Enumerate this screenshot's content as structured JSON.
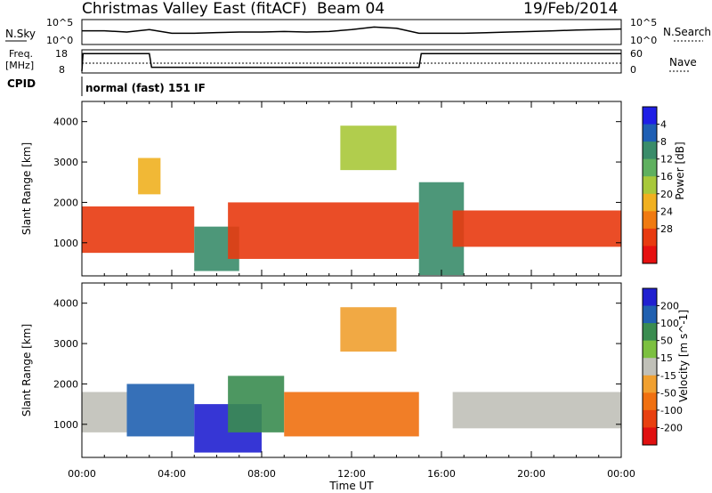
{
  "header": {
    "title": "Christmas Valley East (fitACF)",
    "beam": "Beam 04",
    "date": "19/Feb/2014"
  },
  "noise_panel": {
    "left_label": "N.Sky",
    "right_label": "N.Search",
    "left_ticks": [
      "10^5",
      "10^0"
    ],
    "right_ticks": [
      "10^5",
      "10^0"
    ]
  },
  "freq_panel": {
    "left_label_line1": "Freq.",
    "left_label_line2": "[MHz]",
    "right_label": "Nave",
    "left_ticks": [
      "18",
      "8"
    ],
    "right_ticks": [
      "60",
      "0"
    ]
  },
  "cpid": {
    "label": "CPID",
    "value": "normal (fast) 151 IF"
  },
  "chart_data": [
    {
      "type": "line",
      "name": "noise",
      "xlabel": "",
      "ylabel": "N.Sky",
      "xlim_hours": [
        0,
        24
      ],
      "x": [
        0,
        1,
        2,
        3,
        4,
        5,
        6,
        7,
        8,
        9,
        10,
        11,
        12,
        13,
        14,
        15,
        16,
        17,
        18,
        19,
        20,
        21,
        22,
        23,
        24
      ],
      "y_fraction": [
        0.55,
        0.55,
        0.5,
        0.6,
        0.45,
        0.45,
        0.48,
        0.5,
        0.5,
        0.52,
        0.5,
        0.52,
        0.6,
        0.7,
        0.65,
        0.45,
        0.45,
        0.45,
        0.47,
        0.5,
        0.52,
        0.55,
        0.58,
        0.6,
        0.62
      ]
    },
    {
      "type": "line",
      "name": "frequency",
      "ylabel": "Freq. [MHz]",
      "ylim": [
        8,
        18
      ],
      "x": [
        0,
        0.05,
        3.0,
        3.1,
        15.0,
        15.1,
        24
      ],
      "y": [
        8,
        17,
        17,
        10,
        10,
        17,
        17
      ]
    },
    {
      "type": "heatmap",
      "name": "power",
      "ylabel": "Slant Range [km]",
      "xlabel": "",
      "xlim": [
        "00:00",
        "00:00"
      ],
      "ylim": [
        180,
        4500
      ],
      "y_ticks": [
        1000,
        2000,
        3000,
        4000
      ],
      "colorbar_label": "Power [dB]",
      "colorbar_ticks": [
        4,
        8,
        12,
        16,
        20,
        24,
        28
      ],
      "colorbar_colors": [
        "#1f1fe6",
        "#1f5fb4",
        "#3a8c6a",
        "#5fb05f",
        "#a8c83a",
        "#f0b020",
        "#f07a10",
        "#e83a10",
        "#e61010"
      ],
      "echo_regions": [
        {
          "t_start": 0.0,
          "t_end": 5.0,
          "r_min": 750,
          "r_max": 1900,
          "dB": 26
        },
        {
          "t_start": 2.5,
          "t_end": 3.5,
          "r_min": 2200,
          "r_max": 3100,
          "dB": 18
        },
        {
          "t_start": 5.0,
          "t_end": 7.0,
          "r_min": 300,
          "r_max": 1400,
          "dB": 8
        },
        {
          "t_start": 6.5,
          "t_end": 15.0,
          "r_min": 600,
          "r_max": 2000,
          "dB": 28
        },
        {
          "t_start": 11.5,
          "t_end": 14.0,
          "r_min": 2800,
          "r_max": 3900,
          "dB": 14
        },
        {
          "t_start": 15.0,
          "t_end": 17.0,
          "r_min": 200,
          "r_max": 2500,
          "dB": 8
        },
        {
          "t_start": 16.5,
          "t_end": 24.0,
          "r_min": 900,
          "r_max": 1800,
          "dB": 26
        }
      ]
    },
    {
      "type": "heatmap",
      "name": "velocity",
      "ylabel": "Slant Range [km]",
      "xlabel": "Time UT",
      "x_tick_labels": [
        "00:00",
        "04:00",
        "08:00",
        "12:00",
        "16:00",
        "20:00",
        "00:00"
      ],
      "ylim": [
        180,
        4500
      ],
      "y_ticks": [
        1000,
        2000,
        3000,
        4000
      ],
      "colorbar_label": "Velocity [m s^-1]",
      "colorbar_ticks": [
        200,
        100,
        50,
        15,
        -15,
        -50,
        -100,
        -200
      ],
      "colorbar_colors": [
        "#2020d0",
        "#2060b0",
        "#3a8c50",
        "#7cc040",
        "#c0c0b8",
        "#f0a030",
        "#f07010",
        "#e84010",
        "#e01010"
      ],
      "echo_regions": [
        {
          "t_start": 0.0,
          "t_end": 2.0,
          "r_min": 800,
          "r_max": 1800,
          "v": 0
        },
        {
          "t_start": 2.0,
          "t_end": 5.0,
          "r_min": 700,
          "r_max": 2000,
          "v": 180
        },
        {
          "t_start": 5.0,
          "t_end": 8.0,
          "r_min": 300,
          "r_max": 1500,
          "v": 200
        },
        {
          "t_start": 6.5,
          "t_end": 9.0,
          "r_min": 800,
          "r_max": 2200,
          "v": 60
        },
        {
          "t_start": 9.0,
          "t_end": 15.0,
          "r_min": 700,
          "r_max": 1800,
          "v": -60
        },
        {
          "t_start": 11.5,
          "t_end": 14.0,
          "r_min": 2800,
          "r_max": 3900,
          "v": -40
        },
        {
          "t_start": 16.5,
          "t_end": 24.0,
          "r_min": 900,
          "r_max": 1800,
          "v": 0
        }
      ]
    }
  ]
}
